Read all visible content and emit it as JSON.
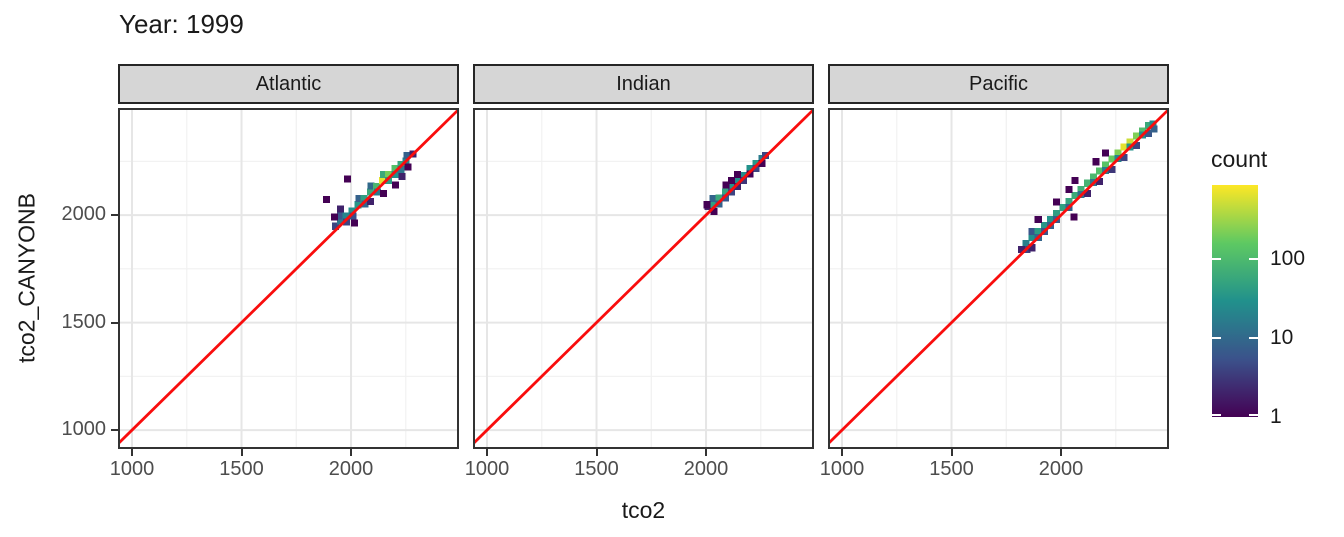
{
  "title": "Year: 1999",
  "legend": {
    "title": "count"
  },
  "chart_data": {
    "type": "heatmap",
    "subtype": "bin2d",
    "title": "Year: 1999",
    "xlabel": "tco2",
    "ylabel": "tco2_CANYONB",
    "facet_labels": [
      "Atlantic",
      "Indian",
      "Pacific"
    ],
    "x_range": [
      936,
      2493
    ],
    "y_range": [
      912,
      2498
    ],
    "x_ticks": [
      1000,
      1500,
      2000
    ],
    "y_ticks": [
      1000,
      1500,
      2000
    ],
    "x_minor_ticks": [
      1250,
      1750,
      2250
    ],
    "y_minor_ticks": [
      1250,
      1750,
      2250
    ],
    "grid": true,
    "legend_position": "right",
    "bin_size": 32,
    "reference_line": {
      "type": "y=x",
      "color": "#f90d0d"
    },
    "color_scale": {
      "name": "viridis",
      "trans": "log10",
      "domain": [
        1,
        850
      ],
      "stops": [
        "#440154",
        "#3b528b",
        "#21918c",
        "#5ec962",
        "#fde725"
      ],
      "legend_ticks": [
        100,
        10,
        1
      ]
    },
    "facets": [
      {
        "label": "Atlantic",
        "bins": [
          [
            1928,
            1948,
            4
          ],
          [
            1952,
            1972,
            14
          ],
          [
            1952,
            1996,
            6
          ],
          [
            1976,
            1996,
            22
          ],
          [
            1980,
            1968,
            4
          ],
          [
            2004,
            2020,
            28
          ],
          [
            2008,
            1996,
            5
          ],
          [
            2032,
            2048,
            34
          ],
          [
            2036,
            2076,
            8
          ],
          [
            2060,
            2076,
            44
          ],
          [
            2064,
            2052,
            9
          ],
          [
            2088,
            2108,
            60
          ],
          [
            2092,
            2136,
            10
          ],
          [
            2116,
            2132,
            90
          ],
          [
            2120,
            2108,
            16
          ],
          [
            2144,
            2160,
            650
          ],
          [
            2148,
            2188,
            60
          ],
          [
            2172,
            2188,
            200
          ],
          [
            2172,
            2160,
            40
          ],
          [
            2200,
            2216,
            120
          ],
          [
            2200,
            2188,
            28
          ],
          [
            2228,
            2236,
            55
          ],
          [
            2228,
            2212,
            14
          ],
          [
            2252,
            2252,
            22
          ],
          [
            2256,
            2276,
            8
          ],
          [
            1984,
            2168,
            1
          ],
          [
            1888,
            2072,
            1
          ],
          [
            2016,
            1964,
            1
          ],
          [
            2148,
            2100,
            1
          ],
          [
            2204,
            2140,
            1
          ],
          [
            2232,
            2180,
            2
          ],
          [
            2260,
            2224,
            1
          ],
          [
            1952,
            2028,
            2
          ],
          [
            1924,
            1992,
            1
          ],
          [
            2088,
            2064,
            2
          ],
          [
            2284,
            2284,
            2
          ]
        ]
      },
      {
        "label": "Indian",
        "bins": [
          [
            2008,
            2040,
            2
          ],
          [
            2032,
            2048,
            45
          ],
          [
            2032,
            2076,
            9
          ],
          [
            2060,
            2080,
            60
          ],
          [
            2060,
            2052,
            8
          ],
          [
            2088,
            2108,
            50
          ],
          [
            2088,
            2080,
            6
          ],
          [
            2116,
            2132,
            32
          ],
          [
            2116,
            2108,
            4
          ],
          [
            2144,
            2160,
            28
          ],
          [
            2172,
            2184,
            24
          ],
          [
            2172,
            2160,
            3
          ],
          [
            2200,
            2216,
            30
          ],
          [
            2228,
            2240,
            36
          ],
          [
            2228,
            2216,
            4
          ],
          [
            2256,
            2264,
            16
          ],
          [
            2272,
            2276,
            4
          ],
          [
            2004,
            2048,
            1
          ],
          [
            2036,
            2016,
            1
          ],
          [
            2092,
            2140,
            1
          ],
          [
            2144,
            2132,
            2
          ],
          [
            2200,
            2192,
            1
          ],
          [
            2256,
            2240,
            1
          ],
          [
            2144,
            2188,
            1
          ],
          [
            2116,
            2160,
            1
          ]
        ]
      },
      {
        "label": "Pacific",
        "bins": [
          [
            1840,
            1868,
            18
          ],
          [
            1844,
            1840,
            4
          ],
          [
            1868,
            1896,
            28
          ],
          [
            1868,
            1924,
            6
          ],
          [
            1896,
            1924,
            40
          ],
          [
            1896,
            1896,
            9
          ],
          [
            1924,
            1952,
            34
          ],
          [
            1924,
            1924,
            6
          ],
          [
            1952,
            1980,
            30
          ],
          [
            1952,
            1952,
            8
          ],
          [
            1980,
            2008,
            42
          ],
          [
            1980,
            1980,
            7
          ],
          [
            2008,
            2036,
            46
          ],
          [
            2036,
            2064,
            52
          ],
          [
            2036,
            2036,
            8
          ],
          [
            2064,
            2092,
            62
          ],
          [
            2092,
            2120,
            70
          ],
          [
            2092,
            2096,
            12
          ],
          [
            2120,
            2148,
            80
          ],
          [
            2148,
            2176,
            95
          ],
          [
            2148,
            2152,
            14
          ],
          [
            2176,
            2204,
            115
          ],
          [
            2204,
            2232,
            135
          ],
          [
            2204,
            2208,
            18
          ],
          [
            2232,
            2260,
            170
          ],
          [
            2260,
            2288,
            230
          ],
          [
            2260,
            2264,
            22
          ],
          [
            2288,
            2316,
            650
          ],
          [
            2316,
            2340,
            500
          ],
          [
            2316,
            2316,
            30
          ],
          [
            2344,
            2368,
            220
          ],
          [
            2372,
            2392,
            110
          ],
          [
            2372,
            2372,
            26
          ],
          [
            2400,
            2416,
            60
          ],
          [
            2420,
            2424,
            24
          ],
          [
            1896,
            1980,
            1
          ],
          [
            2036,
            2120,
            1
          ],
          [
            2160,
            2248,
            1
          ],
          [
            2064,
            2160,
            1
          ],
          [
            1868,
            1848,
            2
          ],
          [
            1980,
            2060,
            1
          ],
          [
            2120,
            2100,
            2
          ],
          [
            2176,
            2156,
            2
          ],
          [
            2232,
            2212,
            3
          ],
          [
            2288,
            2268,
            4
          ],
          [
            2344,
            2324,
            4
          ],
          [
            2400,
            2380,
            6
          ],
          [
            2424,
            2400,
            8
          ],
          [
            2204,
            2288,
            1
          ],
          [
            2060,
            1992,
            1
          ],
          [
            1820,
            1840,
            2
          ]
        ]
      }
    ]
  },
  "colors": {
    "strip_fill": "#d6d6d6",
    "strip_border": "#262626",
    "panel_border": "#333333",
    "grid_major": "#e6e6e6",
    "grid_minor": "#f1f1f1",
    "tick_text": "#4d4d4d",
    "text": "#1a1a1a",
    "reference_line": "#f90d0d",
    "background": "#ffffff"
  }
}
